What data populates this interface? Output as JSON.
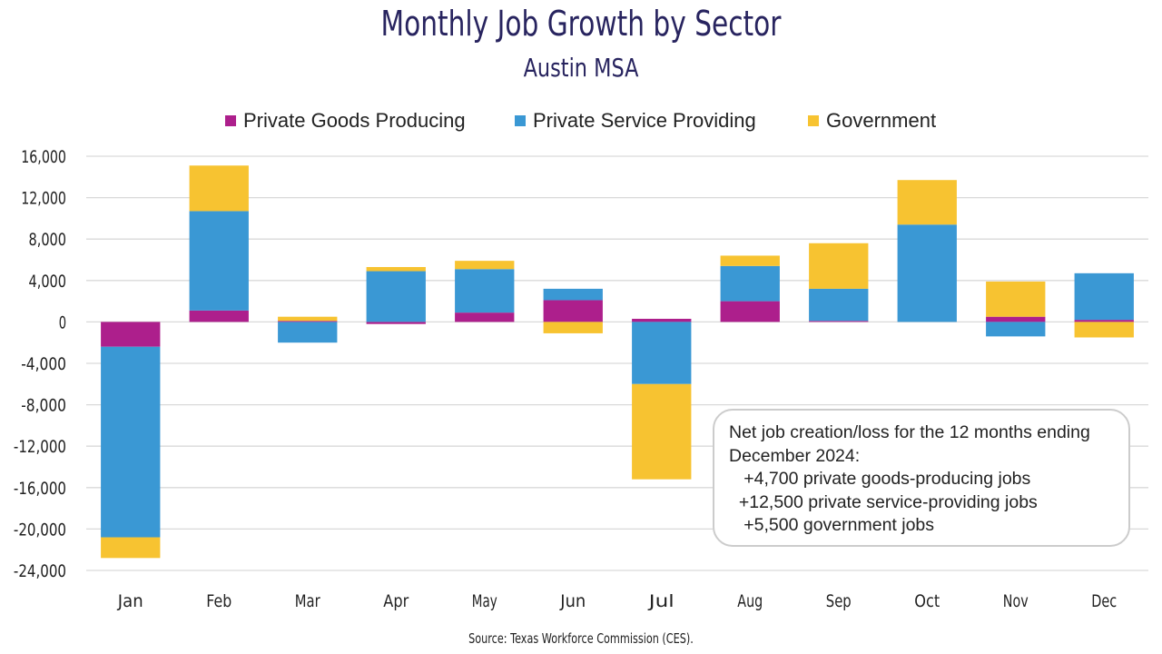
{
  "chart_data": {
    "type": "bar",
    "stacked": true,
    "title": "Monthly Job Growth by Sector",
    "subtitle": "Austin MSA",
    "xlabel": "",
    "ylabel": "",
    "categories": [
      "Jan",
      "Feb",
      "Mar",
      "Apr",
      "May",
      "Jun",
      "Jul",
      "Aug",
      "Sep",
      "Oct",
      "Nov",
      "Dec"
    ],
    "series": [
      {
        "name": "Private Goods Producing",
        "color": "#ad1f8c",
        "values": [
          -2400,
          1100,
          100,
          -200,
          900,
          2100,
          300,
          2000,
          100,
          0,
          500,
          200
        ]
      },
      {
        "name": "Private Service Providing",
        "color": "#3a98d4",
        "values": [
          -18400,
          9600,
          -2000,
          4900,
          4200,
          1100,
          -6000,
          3400,
          3100,
          9400,
          -1400,
          4500
        ]
      },
      {
        "name": "Government",
        "color": "#f7c331",
        "values": [
          -2000,
          4400,
          400,
          400,
          800,
          -1100,
          -9200,
          1000,
          4400,
          4300,
          3400,
          -1500
        ]
      }
    ],
    "ylim": [
      -24000,
      16000
    ],
    "yticks": [
      16000,
      12000,
      8000,
      4000,
      0,
      -4000,
      -8000,
      -12000,
      -16000,
      -20000,
      -24000
    ],
    "ytick_labels": [
      "16,000",
      "12,000",
      "8,000",
      "4,000",
      "0",
      "-4,000",
      "-8,000",
      "-12,000",
      "-16,000",
      "-20,000",
      "-24,000"
    ],
    "grid": true,
    "legend_position": "top-center",
    "annotation": {
      "lines": [
        "Net job creation/loss for the 12 months ending",
        "December 2024:",
        "   +4,700 private goods-producing jobs",
        "  +12,500 private service-providing jobs",
        "   +5,500 government jobs"
      ]
    },
    "source": "Source: Texas Workforce Commission (CES)."
  }
}
